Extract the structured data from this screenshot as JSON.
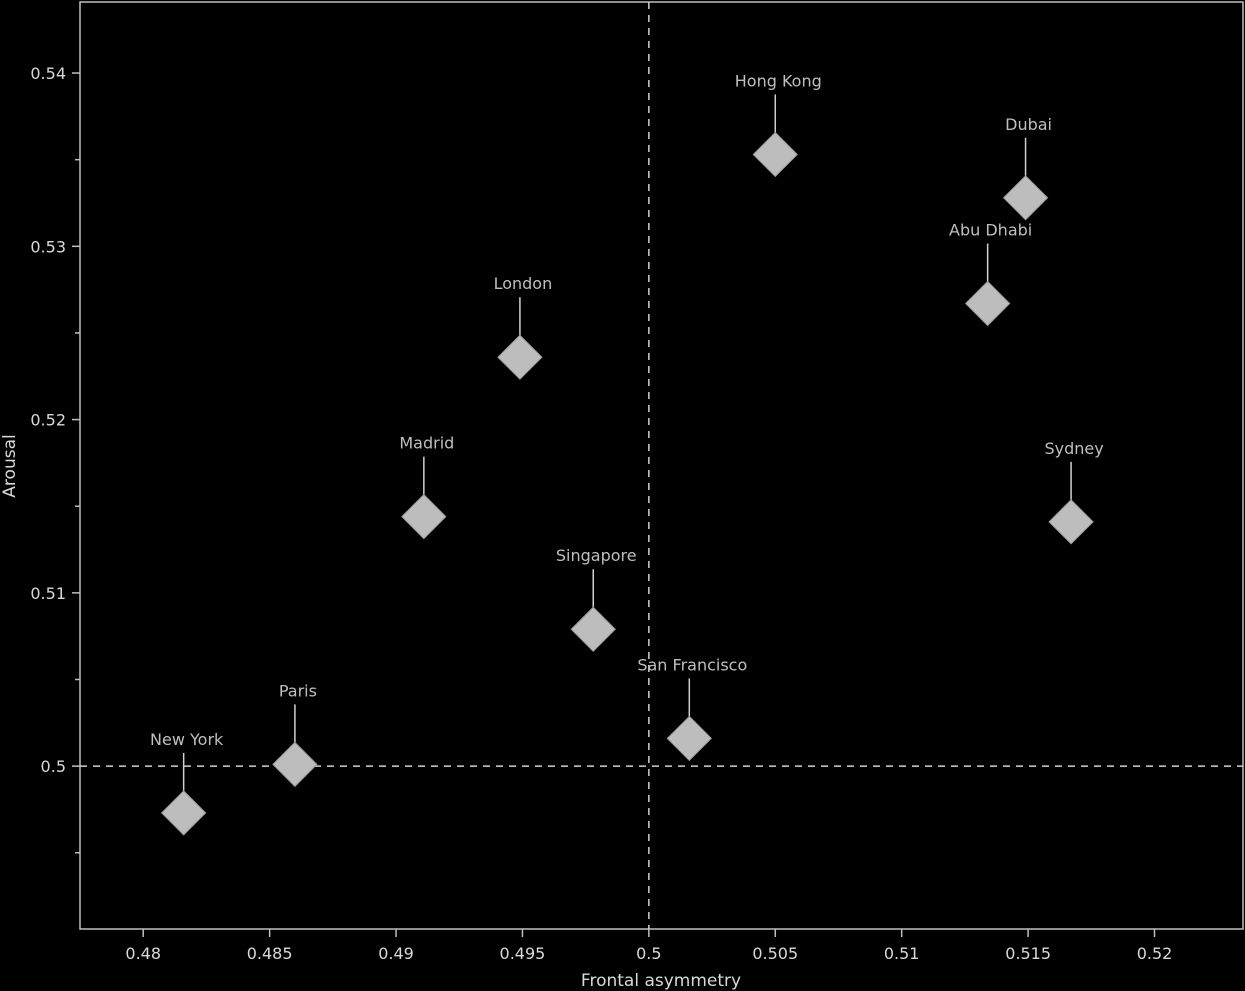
{
  "chart_data": {
    "type": "scatter",
    "xlabel": "Frontal asymmetry",
    "ylabel": "Arousal",
    "xlim": [
      0.4775,
      0.5235
    ],
    "ylim": [
      0.4906,
      0.5441
    ],
    "x_ticks": [
      "0.48",
      "0.485",
      "0.49",
      "0.495",
      "0.5",
      "0.505",
      "0.51",
      "0.515",
      "0.52"
    ],
    "x_tick_values": [
      0.48,
      0.485,
      0.49,
      0.495,
      0.5,
      0.505,
      0.51,
      0.515,
      0.52
    ],
    "y_ticks": [
      "0.5",
      "0.51",
      "0.52",
      "0.53",
      "0.54"
    ],
    "y_tick_values": [
      0.5,
      0.51,
      0.52,
      0.53,
      0.54
    ],
    "y_minor_ticks": [
      0.495,
      0.505,
      0.515,
      0.525,
      0.535
    ],
    "reference_lines": {
      "x": 0.5,
      "y": 0.5,
      "style": "dashed"
    },
    "marker": "diamond",
    "marker_color": "#bdbdbd",
    "background": "#000000",
    "grid": false,
    "points": [
      {
        "label": "New York",
        "x": 0.4816,
        "y": 0.4973
      },
      {
        "label": "Paris",
        "x": 0.486,
        "y": 0.5001
      },
      {
        "label": "Madrid",
        "x": 0.4911,
        "y": 0.5144
      },
      {
        "label": "London",
        "x": 0.4949,
        "y": 0.5236
      },
      {
        "label": "Singapore",
        "x": 0.4978,
        "y": 0.5079
      },
      {
        "label": "San Francisco",
        "x": 0.5016,
        "y": 0.5016
      },
      {
        "label": "Hong Kong",
        "x": 0.505,
        "y": 0.5353
      },
      {
        "label": "Dubai",
        "x": 0.5149,
        "y": 0.5328
      },
      {
        "label": "Abu Dhabi",
        "x": 0.5134,
        "y": 0.5267
      },
      {
        "label": "Sydney",
        "x": 0.5167,
        "y": 0.5141
      }
    ]
  }
}
